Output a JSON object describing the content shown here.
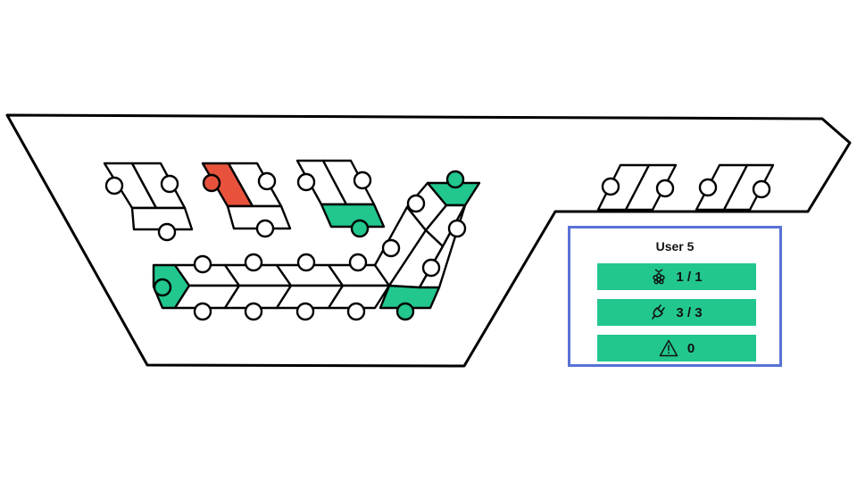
{
  "panel": {
    "title": "User 5",
    "stats": [
      {
        "icon": "raspberry-pi-icon",
        "value": "1 / 1"
      },
      {
        "icon": "power-plug-icon",
        "value": "3 / 3"
      },
      {
        "icon": "warning-icon",
        "value": "0"
      }
    ]
  },
  "colors": {
    "board_stroke": "#000000",
    "slot_filled": "#22c78e",
    "slot_conflict": "#e8523c",
    "panel_border": "#5872d6",
    "stat_fill": "#22c78e"
  }
}
